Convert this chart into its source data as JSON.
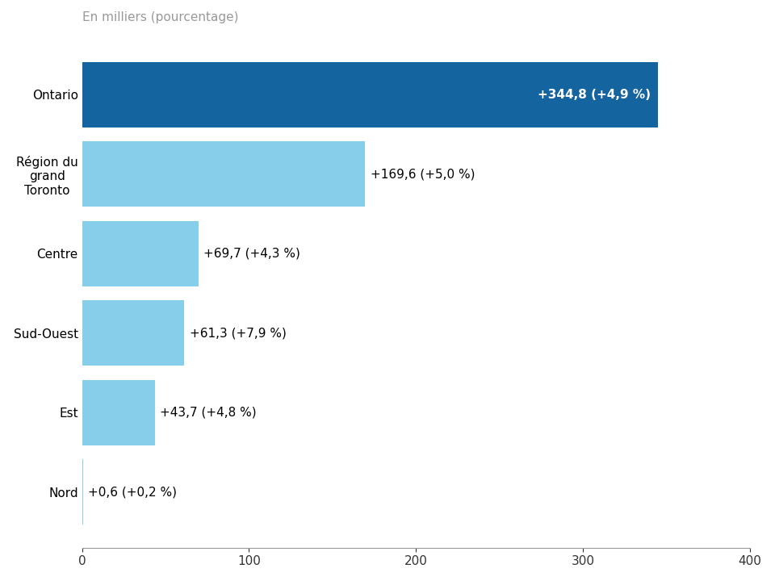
{
  "categories": [
    "Nord",
    "Est",
    "Sud-Ouest",
    "Centre",
    "Région du\ngrand\nToronto",
    "Ontario"
  ],
  "values": [
    0.6,
    43.7,
    61.3,
    69.7,
    169.6,
    344.8
  ],
  "labels": [
    "+0,6 (+0,2 %)",
    "+43,7 (+4,8 %)",
    "+61,3 (+7,9 %)",
    "+69,7 (+4,3 %)",
    "+169,6 (+5,0 %)",
    "+344,8 (+4,9 %)"
  ],
  "bar_colors": [
    "#87CEEB",
    "#87CEEB",
    "#87CEEB",
    "#87CEEB",
    "#87CEEB",
    "#1464A0"
  ],
  "label_colors": [
    "#000000",
    "#000000",
    "#000000",
    "#000000",
    "#000000",
    "#ffffff"
  ],
  "label_inside": [
    false,
    false,
    false,
    false,
    false,
    true
  ],
  "subtitle": "En milliers (pourcentage)",
  "xlim": [
    0,
    400
  ],
  "xticks": [
    0,
    100,
    200,
    300,
    400
  ],
  "figsize": [
    9.6,
    7.2
  ],
  "dpi": 100,
  "bar_height": 0.82,
  "background_color": "#ffffff",
  "label_fontsize": 11,
  "axis_label_fontsize": 11,
  "subtitle_fontsize": 11,
  "subtitle_color": "#999999",
  "tick_color": "#333333",
  "spine_color": "#999999"
}
